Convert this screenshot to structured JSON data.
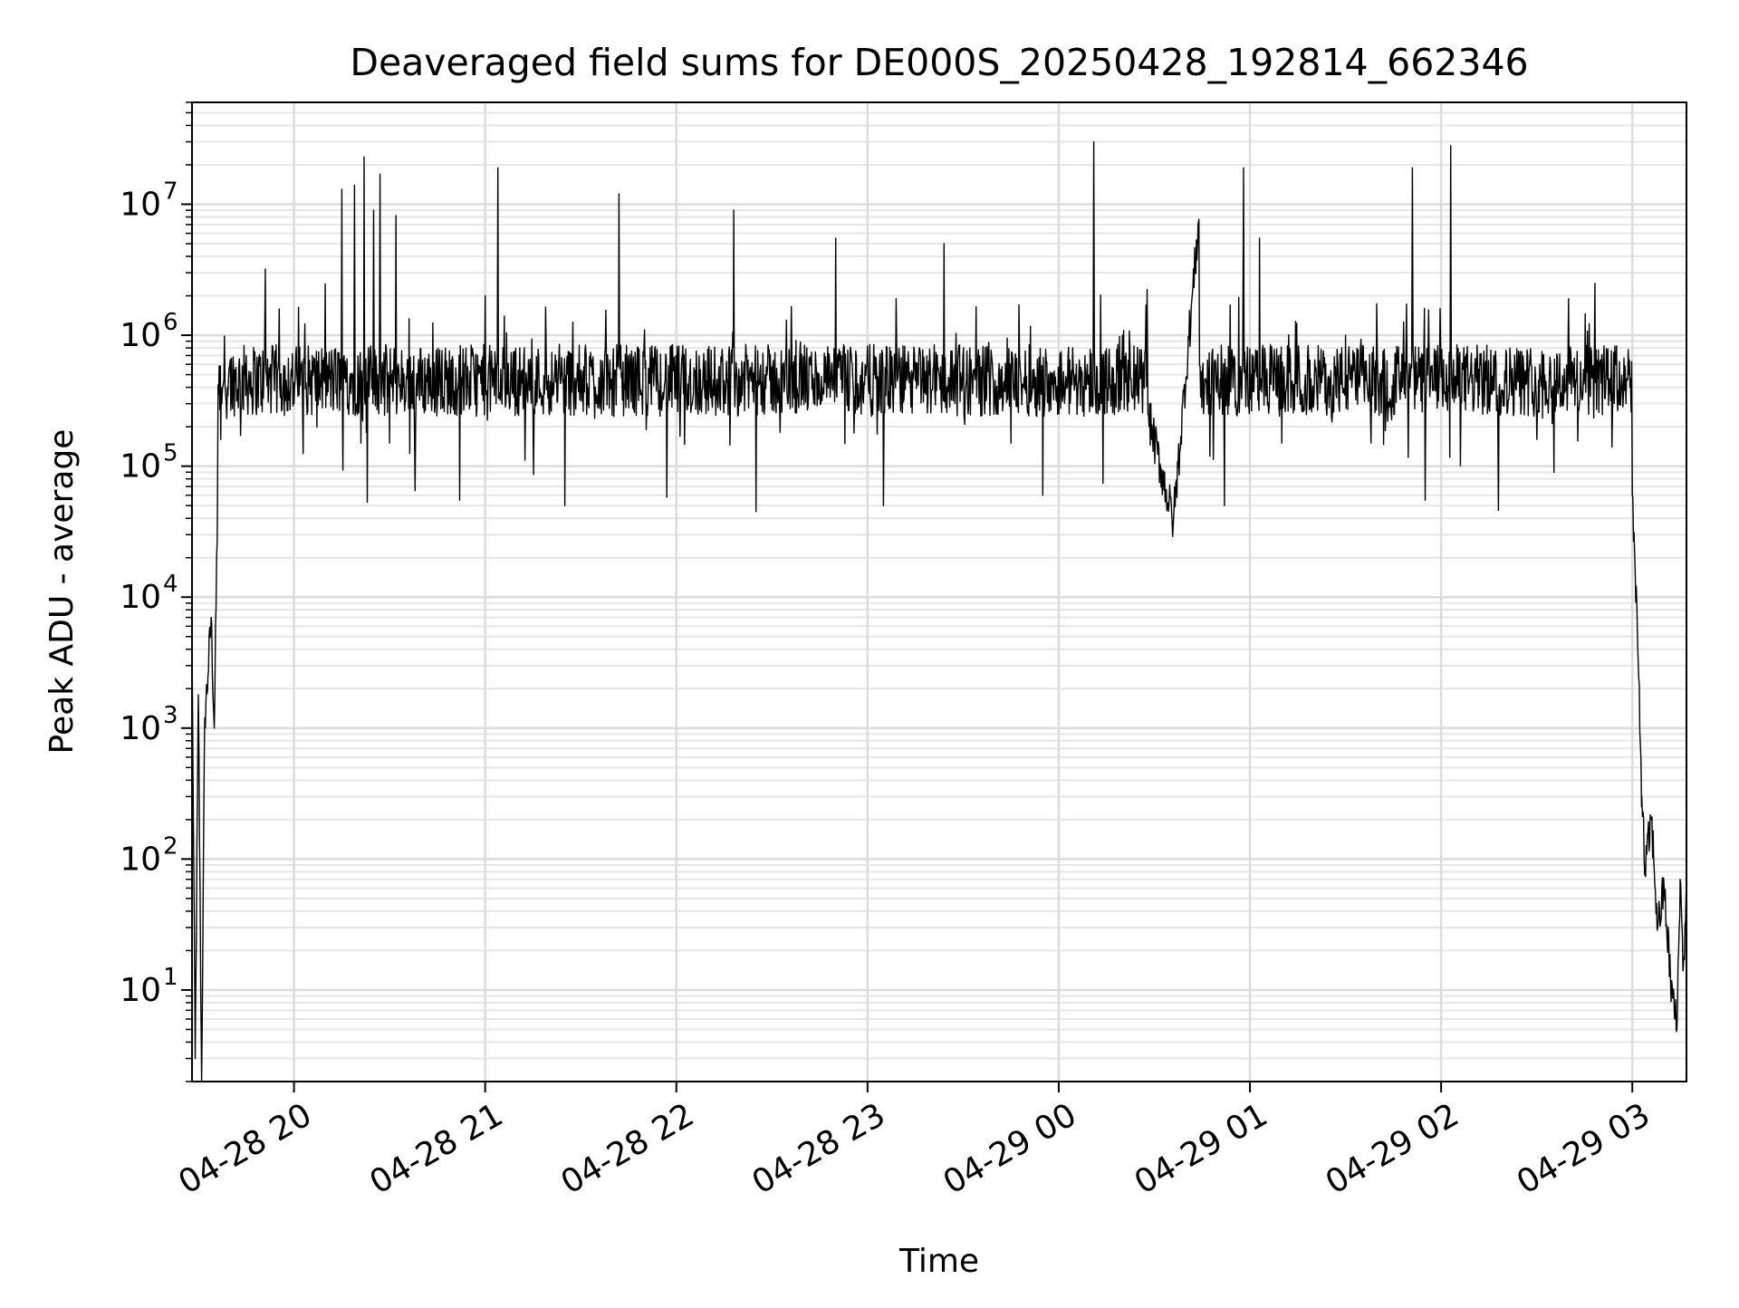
{
  "chart_data": {
    "type": "line",
    "title": "Deaveraged field sums for DE000S_20250428_192814_662346",
    "xlabel": "Time",
    "ylabel": "Peak ADU - average",
    "yscale": "log",
    "grid": true,
    "xlim": [
      "04-28 19:28",
      "04-29 03:17"
    ],
    "ylim": [
      2,
      60000000
    ],
    "x_ticks": [
      "04-28 20",
      "04-28 21",
      "04-28 22",
      "04-28 23",
      "04-29 00",
      "04-29 01",
      "04-29 02",
      "04-29 03"
    ],
    "y_ticks": [
      {
        "base": "10",
        "exp": "1",
        "value": 10
      },
      {
        "base": "10",
        "exp": "2",
        "value": 100
      },
      {
        "base": "10",
        "exp": "3",
        "value": 1000
      },
      {
        "base": "10",
        "exp": "4",
        "value": 10000
      },
      {
        "base": "10",
        "exp": "5",
        "value": 100000
      },
      {
        "base": "10",
        "exp": "6",
        "value": 1000000
      },
      {
        "base": "10",
        "exp": "7",
        "value": 10000000
      }
    ],
    "series": [
      {
        "color": "#000000",
        "points": [
          [
            "04-28 19:28",
            4500
          ],
          [
            "04-28 19:29",
            3
          ],
          [
            "04-28 19:30",
            1800
          ],
          [
            "04-28 19:31",
            2
          ],
          [
            "04-28 19:32",
            1200
          ],
          [
            "04-28 19:33",
            2500
          ],
          [
            "04-28 19:34",
            7000
          ],
          [
            "04-28 19:35",
            1000
          ],
          [
            "04-28 19:36",
            50000
          ],
          [
            "04-28 19:37",
            160000
          ],
          [
            "04-28 19:38",
            450000
          ],
          [
            "04-28 19:40",
            650000
          ],
          [
            "04-28 19:45",
            700000
          ],
          [
            "04-28 19:51",
            3200000
          ],
          [
            "04-28 19:55",
            550000
          ],
          [
            "04-28 20:00",
            300000
          ],
          [
            "04-28 20:08",
            350000
          ],
          [
            "04-28 20:15",
            13000000
          ],
          [
            "04-28 20:19",
            14000000
          ],
          [
            "04-28 20:21",
            150000
          ],
          [
            "04-28 20:22",
            23000000
          ],
          [
            "04-28 20:23",
            53000
          ],
          [
            "04-28 20:25",
            9000000
          ],
          [
            "04-28 20:27",
            17000000
          ],
          [
            "04-28 20:30",
            150000
          ],
          [
            "04-28 20:32",
            8200000
          ],
          [
            "04-28 20:38",
            65000
          ],
          [
            "04-28 20:45",
            300000
          ],
          [
            "04-28 20:52",
            55000
          ],
          [
            "04-28 21:00",
            2000000
          ],
          [
            "04-28 21:04",
            19000000
          ],
          [
            "04-28 21:06",
            1400000
          ],
          [
            "04-28 21:15",
            280000
          ],
          [
            "04-28 21:25",
            50000
          ],
          [
            "04-28 21:35",
            350000
          ],
          [
            "04-28 21:42",
            12000000
          ],
          [
            "04-28 21:50",
            1100000
          ],
          [
            "04-28 21:57",
            58000
          ],
          [
            "04-28 22:05",
            300000
          ],
          [
            "04-28 22:15",
            450000
          ],
          [
            "04-28 22:18",
            9000000
          ],
          [
            "04-28 22:25",
            45000
          ],
          [
            "04-28 22:35",
            300000
          ],
          [
            "04-28 22:45",
            350000
          ],
          [
            "04-28 22:50",
            5500000
          ],
          [
            "04-28 22:58",
            250000
          ],
          [
            "04-28 23:05",
            50000
          ],
          [
            "04-28 23:15",
            450000
          ],
          [
            "04-28 23:24",
            5000000
          ],
          [
            "04-28 23:35",
            300000
          ],
          [
            "04-28 23:45",
            150000
          ],
          [
            "04-28 23:55",
            60000
          ],
          [
            "04-29 00:05",
            400000
          ],
          [
            "04-29 00:11",
            30000000
          ],
          [
            "04-29 00:20",
            1000000
          ],
          [
            "04-29 00:28",
            250000
          ],
          [
            "04-29 00:36",
            38000
          ],
          [
            "04-29 00:44",
            7700000
          ],
          [
            "04-29 00:52",
            50000
          ],
          [
            "04-29 00:58",
            19000000
          ],
          [
            "04-29 01:03",
            5500000
          ],
          [
            "04-29 01:10",
            150000
          ],
          [
            "04-29 01:20",
            300000
          ],
          [
            "04-29 01:30",
            1000000
          ],
          [
            "04-29 01:38",
            150000
          ],
          [
            "04-29 01:45",
            500000
          ],
          [
            "04-29 01:51",
            19000000
          ],
          [
            "04-29 01:55",
            55000
          ],
          [
            "04-29 02:03",
            28000000
          ],
          [
            "04-29 02:12",
            350000
          ],
          [
            "04-29 02:18",
            46000
          ],
          [
            "04-29 02:25",
            250000
          ],
          [
            "04-29 02:32",
            700000
          ],
          [
            "04-29 02:40",
            1900000
          ],
          [
            "04-29 02:47",
            800000
          ],
          [
            "04-29 02:52",
            700000
          ],
          [
            "04-29 02:58",
            300000
          ],
          [
            "04-29 03:00",
            60000
          ],
          [
            "04-29 03:02",
            2500
          ],
          [
            "04-29 03:03",
            300
          ],
          [
            "04-29 03:04",
            80
          ],
          [
            "04-29 03:06",
            200
          ],
          [
            "04-29 03:08",
            30
          ],
          [
            "04-29 03:10",
            60
          ],
          [
            "04-29 03:12",
            12
          ],
          [
            "04-29 03:14",
            5
          ],
          [
            "04-29 03:15",
            70
          ],
          [
            "04-29 03:16",
            15
          ],
          [
            "04-29 03:17",
            50
          ]
        ]
      }
    ]
  }
}
